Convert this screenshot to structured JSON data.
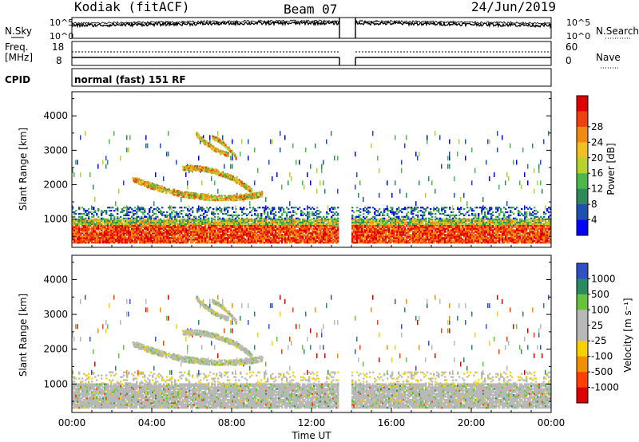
{
  "header": {
    "radar": "Kodiak (fitACF)",
    "beam": "Beam 07",
    "date": "24/Jun/2019"
  },
  "top_panels": {
    "nsky_label": "N.Sky",
    "nsearch_label": "N.Search",
    "noise_ticks_left": [
      "10^5",
      "10^0"
    ],
    "noise_ticks_right": [
      "10^5",
      "10^0"
    ],
    "freq_label_1": "Freq.",
    "freq_label_2": "[MHz]",
    "freq_ticks": [
      "18",
      "8"
    ],
    "nave_label": "Nave",
    "nave_ticks": [
      "60",
      "0"
    ],
    "cpid_label": "CPID",
    "cpid_text": "normal (fast) 151 RF"
  },
  "chart_data": [
    {
      "type": "heatmap",
      "name": "power",
      "ylabel": "Slant Range [km]",
      "yticks": [
        "1000",
        "2000",
        "3000",
        "4000"
      ],
      "ylim": [
        180,
        4700
      ],
      "xlim_hours": [
        0,
        24
      ],
      "data_gap_ut": [
        "13:20",
        "14:00"
      ],
      "colorbar_label": "Power [dB]",
      "colorbar_ticks": [
        "4",
        "8",
        "12",
        "16",
        "20",
        "24",
        "28"
      ],
      "colorbar_colors": [
        "#0000ff",
        "#1f4fb0",
        "#2e8a58",
        "#4db84a",
        "#b6d22d",
        "#f0c020",
        "#f08a10",
        "#f04010",
        "#e00000"
      ],
      "features": [
        {
          "desc": "strong near-range echoes",
          "range_km": [
            300,
            1000
          ],
          "time": [
            "00:00",
            "13:20"
          ],
          "power_db": 28
        },
        {
          "desc": "strong near-range echoes",
          "range_km": [
            300,
            1000
          ],
          "time": [
            "14:00",
            "24:00"
          ],
          "power_db": 28
        },
        {
          "desc": "arc",
          "range_km": [
            1700,
            2600
          ],
          "time": [
            "03:00",
            "09:30"
          ],
          "power_db": 16
        },
        {
          "desc": "arc",
          "range_km": [
            2800,
            3600
          ],
          "time": [
            "06:00",
            "08:30"
          ],
          "power_db": 16
        }
      ]
    },
    {
      "type": "heatmap",
      "name": "velocity",
      "ylabel": "Slant Range [km]",
      "yticks": [
        "1000",
        "2000",
        "3000",
        "4000"
      ],
      "ylim": [
        180,
        4700
      ],
      "xlim_hours": [
        0,
        24
      ],
      "xlabel": "Time UT",
      "xticks": [
        "00:00",
        "04:00",
        "08:00",
        "12:00",
        "16:00",
        "20:00",
        "00:00"
      ],
      "colorbar_label": "Velocity [m s⁻¹]",
      "colorbar_ticks": [
        "1000",
        "500",
        "100",
        "25",
        "-25",
        "-100",
        "-500",
        "-1000"
      ],
      "colorbar_colors": [
        "#3050c8",
        "#2a8a60",
        "#66c43a",
        "#b8b8b8",
        "#b8b8b8",
        "#f6d200",
        "#f39000",
        "#ff4000",
        "#e00000"
      ],
      "features": [
        {
          "desc": "ground scatter, near-zero velocity",
          "range_km": [
            300,
            1000
          ],
          "velocity_ms": 0
        },
        {
          "desc": "arc",
          "range_km": [
            1700,
            2600
          ],
          "time": [
            "03:00",
            "09:30"
          ],
          "velocity_ms": 0
        }
      ]
    }
  ]
}
